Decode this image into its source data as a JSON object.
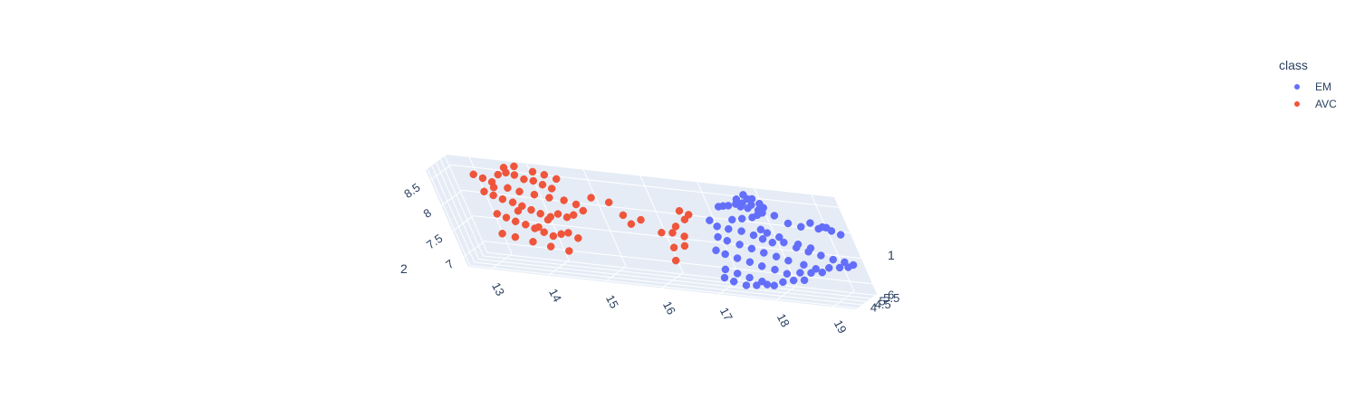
{
  "chart_data": {
    "type": "scatter",
    "legend": {
      "title": "class",
      "placement": "top-right",
      "items": [
        {
          "name": "EM",
          "color": "#636efa"
        },
        {
          "name": "AVC",
          "color": "#EF553B"
        }
      ]
    },
    "axes": {
      "x": {
        "ticks": [
          "13",
          "14",
          "15",
          "16",
          "17",
          "18",
          "19"
        ],
        "range": [
          12.6,
          19.4
        ]
      },
      "y": {
        "ticks": [
          "4",
          "4.5",
          "5",
          "5.5",
          "6"
        ],
        "range": [
          3.8,
          6.2
        ]
      },
      "z": {
        "ticks": [
          "7",
          "7.5",
          "8",
          "8.5"
        ],
        "range": [
          6.8,
          8.7
        ]
      },
      "x_title": "",
      "y_title": "1",
      "z_title": "2"
    },
    "grid": true,
    "background": "#e5ecf6",
    "series": [
      {
        "name": "EM",
        "color": "#636efa",
        "points": [
          [
            17.75,
            6.15,
            8.55
          ],
          [
            17.8,
            6.1,
            8.48
          ],
          [
            17.6,
            6.1,
            8.45
          ],
          [
            17.9,
            6.05,
            8.5
          ],
          [
            18.0,
            6.05,
            8.42
          ],
          [
            17.7,
            6.0,
            8.4
          ],
          [
            17.85,
            6.0,
            8.38
          ],
          [
            18.05,
            6.0,
            8.35
          ],
          [
            17.65,
            5.95,
            8.33
          ],
          [
            17.95,
            5.95,
            8.3
          ],
          [
            17.55,
            6.1,
            8.35
          ],
          [
            17.4,
            6.1,
            8.3
          ],
          [
            17.2,
            6.15,
            8.25
          ],
          [
            17.3,
            6.1,
            8.28
          ],
          [
            17.75,
            6.05,
            8.3
          ],
          [
            18.0,
            5.95,
            8.25
          ],
          [
            17.9,
            5.9,
            8.2
          ],
          [
            18.2,
            5.95,
            8.22
          ],
          [
            18.4,
            5.9,
            8.1
          ],
          [
            18.6,
            5.95,
            8.05
          ],
          [
            18.8,
            5.95,
            8.15
          ],
          [
            19.0,
            5.9,
            8.1
          ],
          [
            19.15,
            5.85,
            8.05
          ],
          [
            19.3,
            5.8,
            8.0
          ],
          [
            19.1,
            5.75,
            8.12
          ],
          [
            18.95,
            5.75,
            8.08
          ],
          [
            17.0,
            5.8,
            8.0
          ],
          [
            17.1,
            5.75,
            7.9
          ],
          [
            17.3,
            5.7,
            7.88
          ],
          [
            17.5,
            5.8,
            7.85
          ],
          [
            17.7,
            5.75,
            7.8
          ],
          [
            17.85,
            5.7,
            7.75
          ],
          [
            18.0,
            5.7,
            7.7
          ],
          [
            18.2,
            5.75,
            7.72
          ],
          [
            18.4,
            5.7,
            7.65
          ],
          [
            18.6,
            5.65,
            7.6
          ],
          [
            18.8,
            5.65,
            7.55
          ],
          [
            19.0,
            5.6,
            7.5
          ],
          [
            19.2,
            5.55,
            7.48
          ],
          [
            19.35,
            5.5,
            7.45
          ],
          [
            19.25,
            5.45,
            7.4
          ],
          [
            19.1,
            5.4,
            7.38
          ],
          [
            18.9,
            5.4,
            7.35
          ],
          [
            17.05,
            5.65,
            7.7
          ],
          [
            17.2,
            5.6,
            7.65
          ],
          [
            17.4,
            5.6,
            7.6
          ],
          [
            17.6,
            5.55,
            7.55
          ],
          [
            17.8,
            5.5,
            7.5
          ],
          [
            18.0,
            5.5,
            7.45
          ],
          [
            18.2,
            5.45,
            7.4
          ],
          [
            18.45,
            5.45,
            7.35
          ],
          [
            18.65,
            5.4,
            7.3
          ],
          [
            18.75,
            5.35,
            7.25
          ],
          [
            18.55,
            5.3,
            7.22
          ],
          [
            18.35,
            5.3,
            7.2
          ],
          [
            18.1,
            5.3,
            7.15
          ],
          [
            17.9,
            5.35,
            7.2
          ],
          [
            17.7,
            5.3,
            7.25
          ],
          [
            17.5,
            5.35,
            7.3
          ],
          [
            17.3,
            5.35,
            7.35
          ],
          [
            17.1,
            5.4,
            7.4
          ],
          [
            16.95,
            5.45,
            7.45
          ],
          [
            17.0,
            5.3,
            7.1
          ],
          [
            17.2,
            5.25,
            7.05
          ],
          [
            17.4,
            5.2,
            7.0
          ],
          [
            17.6,
            5.2,
            6.95
          ],
          [
            17.8,
            5.15,
            6.9
          ],
          [
            17.3,
            5.1,
            6.85
          ],
          [
            17.1,
            5.1,
            6.9
          ],
          [
            16.95,
            5.15,
            6.95
          ],
          [
            17.5,
            5.05,
            6.88
          ],
          [
            17.7,
            5.05,
            6.92
          ],
          [
            18.0,
            5.1,
            7.0
          ],
          [
            18.2,
            5.15,
            7.05
          ],
          [
            18.4,
            5.15,
            7.08
          ],
          [
            18.0,
            5.6,
            7.9
          ],
          [
            18.2,
            5.55,
            7.85
          ],
          [
            17.9,
            5.65,
            7.95
          ],
          [
            18.5,
            5.5,
            7.75
          ],
          [
            18.7,
            5.5,
            7.7
          ],
          [
            17.6,
            5.85,
            8.1
          ],
          [
            17.4,
            5.9,
            8.05
          ],
          [
            17.8,
            5.85,
            8.15
          ]
        ]
      },
      {
        "name": "AVC",
        "color": "#EF553B",
        "points": [
          [
            13.0,
            5.9,
            8.4
          ],
          [
            13.15,
            5.85,
            8.35
          ],
          [
            13.3,
            5.8,
            8.3
          ],
          [
            13.45,
            5.9,
            8.45
          ],
          [
            13.6,
            5.95,
            8.5
          ],
          [
            13.75,
            5.9,
            8.48
          ],
          [
            13.9,
            5.85,
            8.42
          ],
          [
            14.05,
            5.9,
            8.4
          ],
          [
            14.2,
            5.85,
            8.35
          ],
          [
            14.35,
            5.8,
            8.3
          ],
          [
            13.1,
            5.7,
            8.1
          ],
          [
            13.25,
            5.65,
            8.05
          ],
          [
            13.4,
            5.6,
            8.0
          ],
          [
            13.55,
            5.65,
            7.95
          ],
          [
            13.7,
            5.6,
            7.9
          ],
          [
            13.85,
            5.55,
            7.85
          ],
          [
            14.0,
            5.5,
            7.8
          ],
          [
            14.15,
            5.55,
            7.75
          ],
          [
            14.3,
            5.6,
            7.82
          ],
          [
            14.45,
            5.55,
            7.78
          ],
          [
            13.2,
            5.5,
            7.7
          ],
          [
            13.35,
            5.45,
            7.65
          ],
          [
            13.5,
            5.4,
            7.6
          ],
          [
            13.65,
            5.45,
            7.55
          ],
          [
            13.8,
            5.4,
            7.5
          ],
          [
            13.95,
            5.35,
            7.45
          ],
          [
            14.1,
            5.3,
            7.4
          ],
          [
            14.25,
            5.35,
            7.45
          ],
          [
            14.4,
            5.3,
            7.5
          ],
          [
            14.55,
            5.25,
            7.42
          ],
          [
            13.6,
            5.95,
            8.6
          ],
          [
            13.8,
            5.95,
            8.65
          ],
          [
            14.1,
            5.95,
            8.58
          ],
          [
            14.3,
            5.9,
            8.55
          ],
          [
            14.5,
            5.85,
            8.5
          ],
          [
            13.3,
            5.75,
            8.2
          ],
          [
            13.55,
            5.75,
            8.22
          ],
          [
            13.75,
            5.7,
            8.18
          ],
          [
            14.0,
            5.7,
            8.15
          ],
          [
            14.25,
            5.7,
            8.12
          ],
          [
            14.5,
            5.7,
            8.1
          ],
          [
            14.7,
            5.65,
            8.05
          ],
          [
            14.8,
            5.55,
            7.95
          ],
          [
            14.6,
            5.5,
            7.85
          ],
          [
            13.4,
            5.25,
            7.3
          ],
          [
            13.7,
            5.2,
            7.25
          ],
          [
            14.0,
            5.15,
            7.2
          ],
          [
            14.3,
            5.15,
            7.15
          ],
          [
            13.2,
            5.2,
            7.35
          ],
          [
            13.9,
            5.3,
            7.55
          ],
          [
            14.1,
            5.45,
            7.7
          ],
          [
            13.6,
            5.55,
            7.8
          ],
          [
            15.0,
            5.8,
            8.2
          ],
          [
            15.3,
            5.75,
            8.15
          ],
          [
            15.5,
            5.55,
            7.95
          ],
          [
            15.6,
            5.45,
            7.8
          ],
          [
            15.8,
            5.5,
            7.9
          ],
          [
            16.1,
            5.4,
            7.7
          ],
          [
            16.3,
            5.4,
            7.72
          ],
          [
            16.5,
            5.35,
            7.68
          ],
          [
            16.4,
            5.45,
            7.85
          ],
          [
            16.6,
            5.55,
            8.0
          ],
          [
            16.7,
            5.6,
            8.1
          ],
          [
            16.55,
            5.65,
            8.15
          ],
          [
            16.45,
            5.25,
            7.5
          ],
          [
            16.25,
            5.2,
            7.45
          ],
          [
            16.2,
            5.1,
            7.2
          ]
        ]
      }
    ]
  }
}
